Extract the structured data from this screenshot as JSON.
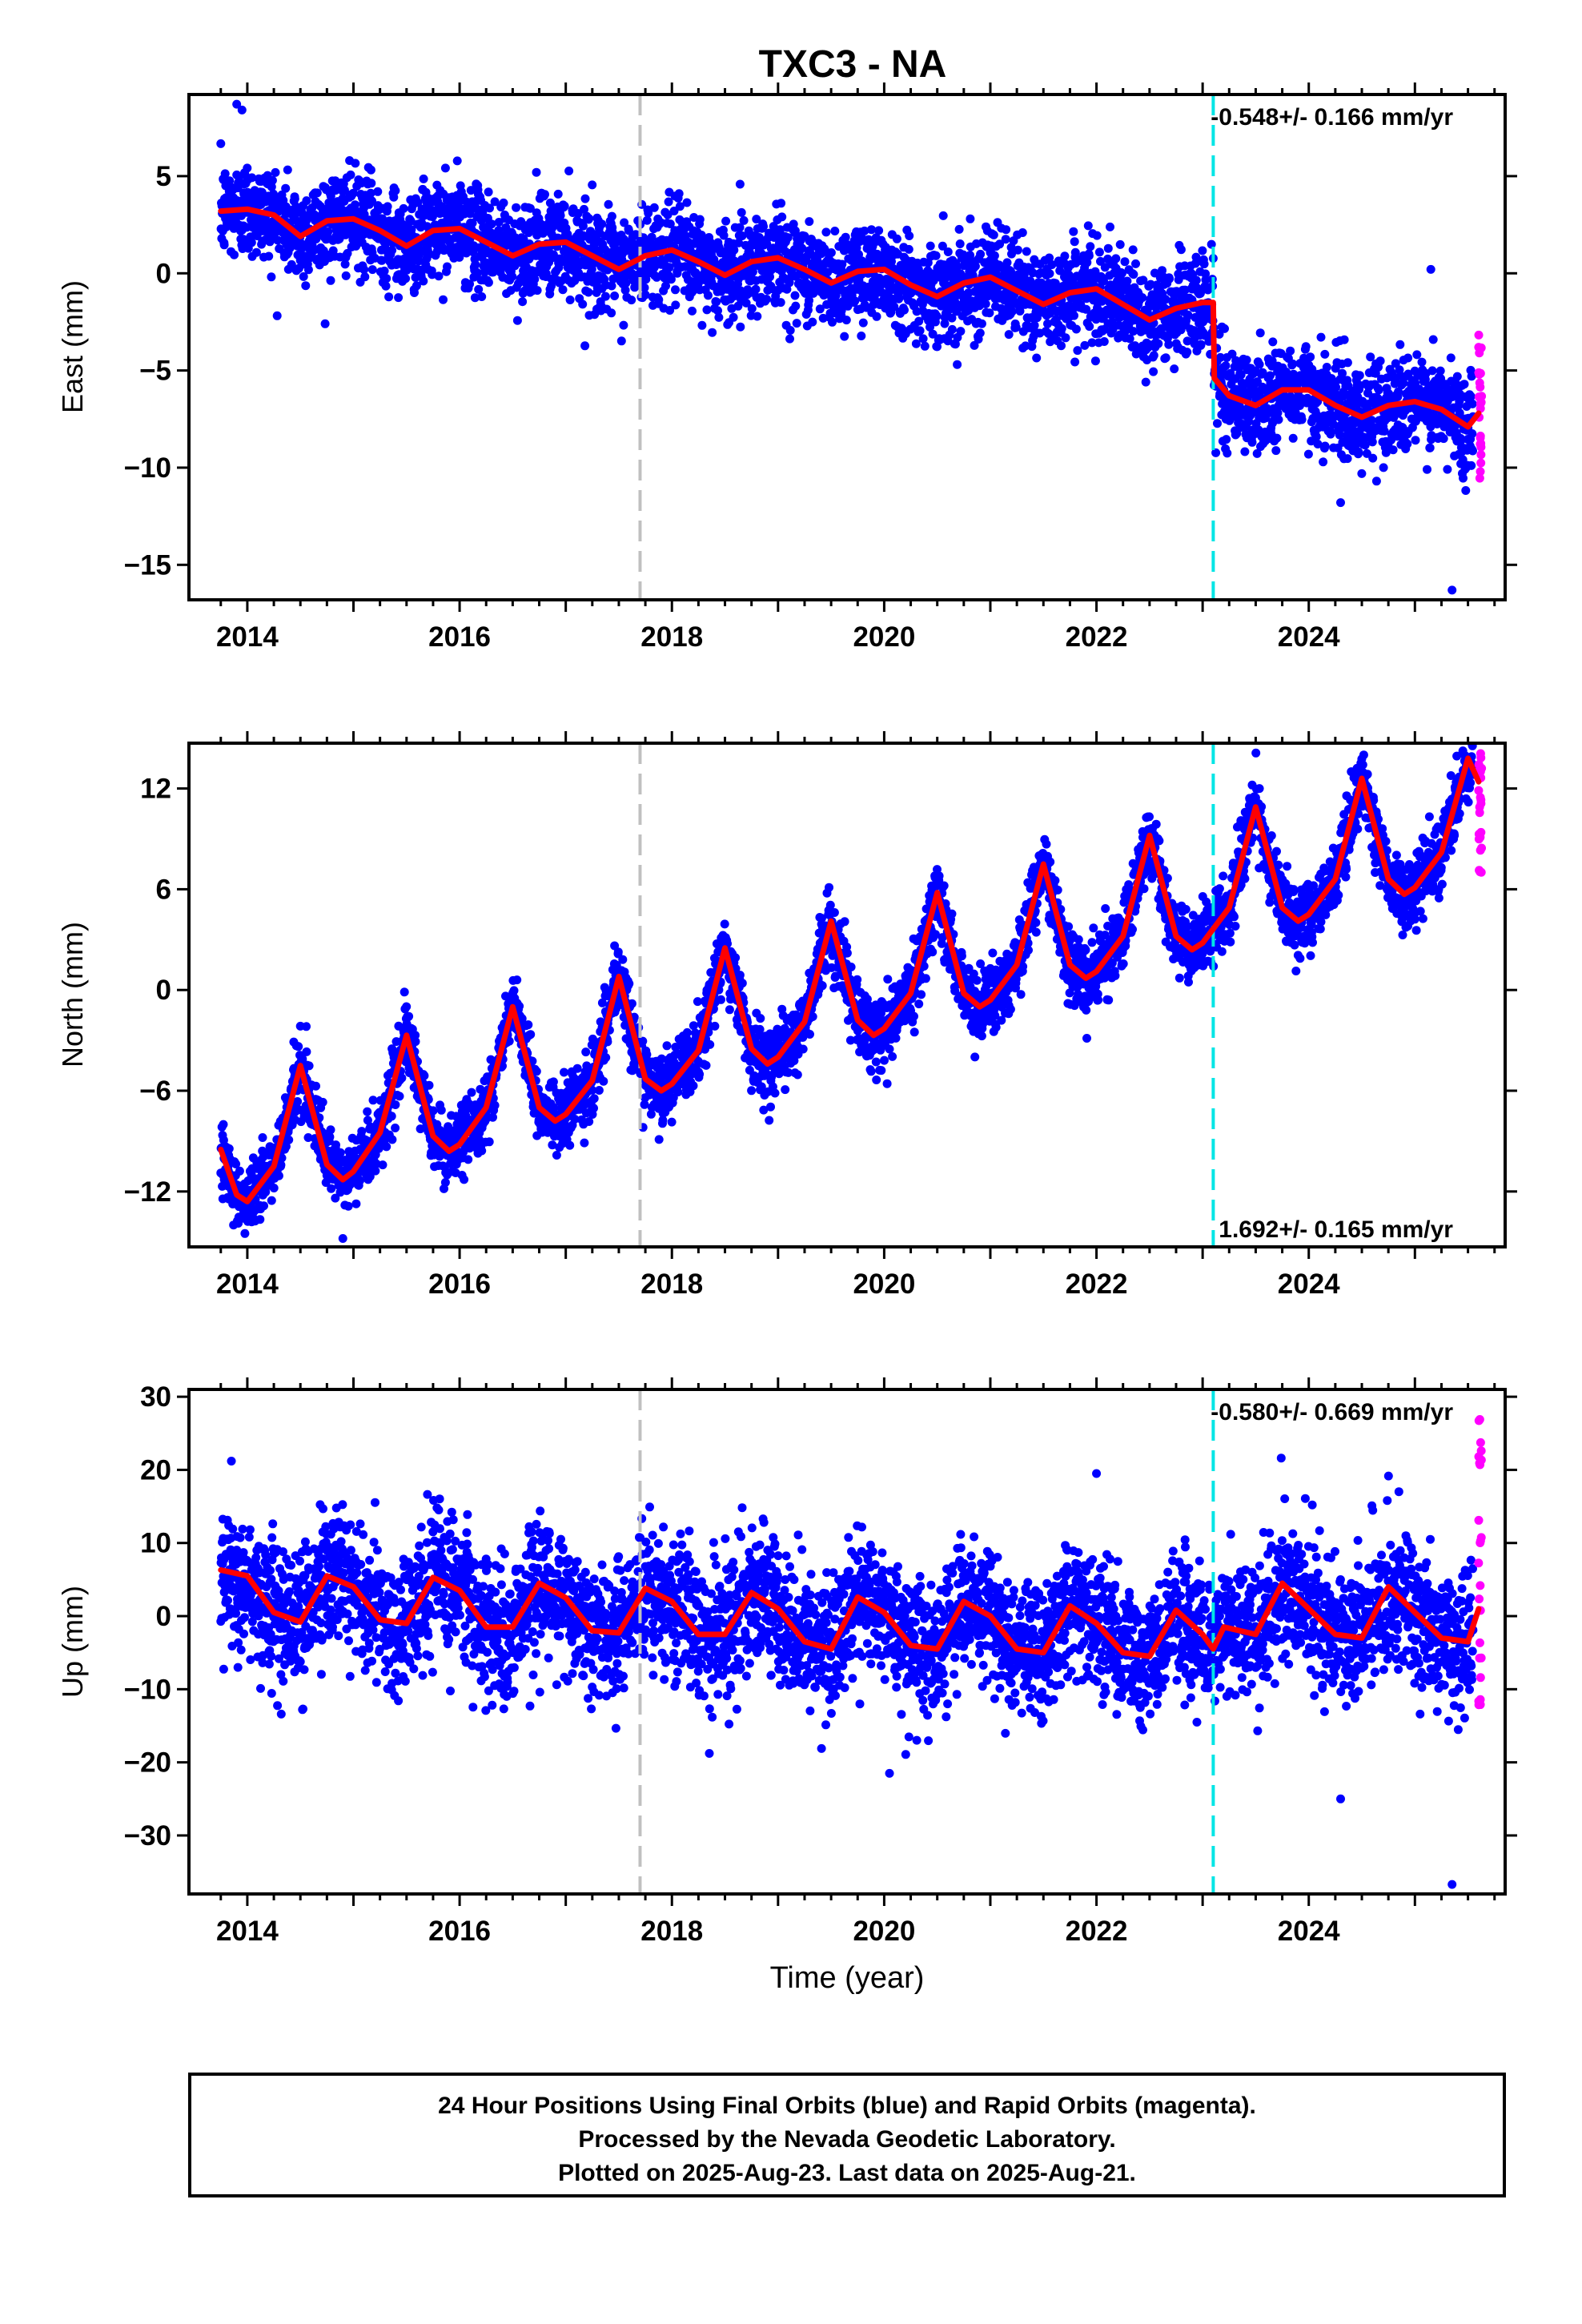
{
  "title": "TXC3 - NA",
  "xlabel": "Time (year)",
  "colors": {
    "final": "#0000ff",
    "rapid": "#ff00ff",
    "model": "#ff0000",
    "marker_gray": "#c0c0c0",
    "marker_cyan": "#00e5e5"
  },
  "x_ticks": [
    "2014",
    "2016",
    "2018",
    "2020",
    "2022",
    "2024"
  ],
  "footer": {
    "line1": "24 Hour Positions Using Final Orbits (blue) and Rapid Orbits (magenta).",
    "line2": "Processed by the Nevada Geodetic Laboratory.",
    "line3": "Plotted on 2025-Aug-23. Last data on 2025-Aug-21."
  },
  "chart_data": [
    {
      "type": "scatter",
      "ylabel": "East (mm)",
      "xlim": [
        2013.45,
        2025.85
      ],
      "ylim": [
        -16.8,
        9.2
      ],
      "yticks": [
        5,
        0,
        -5,
        -10,
        -15
      ],
      "ytick_labels": [
        "5",
        "0",
        "−5",
        "−10",
        "−15"
      ],
      "rate_label": "-0.548+/- 0.166 mm/yr",
      "rate_position": "top-right",
      "vertical_markers": [
        2017.7,
        2023.1
      ],
      "model_x": [
        2013.75,
        2014.0,
        2014.25,
        2014.5,
        2014.75,
        2015.0,
        2015.25,
        2015.5,
        2015.75,
        2016.0,
        2016.25,
        2016.5,
        2016.75,
        2017.0,
        2017.25,
        2017.5,
        2017.75,
        2018.0,
        2018.25,
        2018.5,
        2018.75,
        2019.0,
        2019.25,
        2019.5,
        2019.75,
        2020.0,
        2020.25,
        2020.5,
        2020.75,
        2021.0,
        2021.25,
        2021.5,
        2021.75,
        2022.0,
        2022.25,
        2022.5,
        2022.75,
        2023.0,
        2023.1,
        2023.11,
        2023.25,
        2023.5,
        2023.75,
        2024.0,
        2024.25,
        2024.5,
        2024.75,
        2025.0,
        2025.25,
        2025.5,
        2025.6
      ],
      "model_y": [
        3.2,
        3.3,
        3.0,
        1.9,
        2.7,
        2.8,
        2.2,
        1.4,
        2.2,
        2.3,
        1.6,
        0.9,
        1.5,
        1.6,
        0.9,
        0.2,
        0.9,
        1.2,
        0.6,
        -0.1,
        0.6,
        0.8,
        0.2,
        -0.5,
        0.1,
        0.2,
        -0.6,
        -1.2,
        -0.5,
        -0.2,
        -0.9,
        -1.6,
        -1.0,
        -0.8,
        -1.6,
        -2.4,
        -1.8,
        -1.5,
        -1.5,
        -5.4,
        -6.3,
        -6.8,
        -6.0,
        -6.0,
        -6.8,
        -7.4,
        -6.8,
        -6.6,
        -7.0,
        -7.9,
        -7.2
      ],
      "final_orbits": {
        "x_range": [
          2013.75,
          2025.55
        ],
        "trend_mm_per_yr": -0.548,
        "annual_amp_mm": 0.8,
        "offset_at_2023_1_mm": -4.0,
        "scatter_sigma_mm": 1.25,
        "outliers": [
          [
            2013.9,
            8.7
          ],
          [
            2013.95,
            8.4
          ],
          [
            2024.3,
            -11.8
          ],
          [
            2025.35,
            -16.3
          ],
          [
            2025.15,
            0.2
          ]
        ]
      },
      "rapid_orbits": {
        "x_range": [
          2025.55,
          2025.64
        ],
        "y_range": [
          -10.9,
          -2.2
        ]
      }
    },
    {
      "type": "scatter",
      "ylabel": "North (mm)",
      "xlim": [
        2013.45,
        2025.85
      ],
      "ylim": [
        -15.3,
        14.7
      ],
      "yticks": [
        12,
        6,
        0,
        -6,
        -12
      ],
      "ytick_labels": [
        "12",
        "6",
        "0",
        "−6",
        "−12"
      ],
      "rate_label": "1.692+/- 0.165 mm/yr",
      "rate_position": "bottom-right",
      "vertical_markers": [
        2017.7,
        2023.1
      ],
      "model_x": [
        2013.75,
        2013.9,
        2014.0,
        2014.25,
        2014.5,
        2014.75,
        2014.9,
        2015.0,
        2015.25,
        2015.5,
        2015.75,
        2015.9,
        2016.0,
        2016.25,
        2016.5,
        2016.75,
        2016.9,
        2017.0,
        2017.25,
        2017.5,
        2017.75,
        2017.9,
        2018.0,
        2018.25,
        2018.5,
        2018.75,
        2018.9,
        2019.0,
        2019.25,
        2019.5,
        2019.75,
        2019.9,
        2020.0,
        2020.25,
        2020.5,
        2020.75,
        2020.9,
        2021.0,
        2021.25,
        2021.5,
        2021.75,
        2021.9,
        2022.0,
        2022.25,
        2022.5,
        2022.75,
        2022.9,
        2023.0,
        2023.25,
        2023.5,
        2023.75,
        2023.9,
        2024.0,
        2024.25,
        2024.5,
        2024.75,
        2024.9,
        2025.0,
        2025.25,
        2025.5,
        2025.6
      ],
      "model_y": [
        -9.5,
        -12.2,
        -12.6,
        -10.5,
        -4.5,
        -10.4,
        -11.3,
        -10.8,
        -8.5,
        -2.7,
        -8.7,
        -9.6,
        -9.2,
        -7.0,
        -1.0,
        -7.0,
        -7.8,
        -7.4,
        -5.4,
        0.8,
        -5.3,
        -6.0,
        -5.6,
        -3.6,
        2.5,
        -3.5,
        -4.4,
        -4.0,
        -1.9,
        4.1,
        -1.8,
        -2.7,
        -2.3,
        -0.2,
        5.8,
        -0.2,
        -1.0,
        -0.6,
        1.5,
        7.5,
        1.5,
        0.7,
        1.1,
        3.2,
        9.2,
        3.2,
        2.4,
        2.8,
        4.9,
        10.9,
        4.9,
        4.1,
        4.5,
        6.6,
        12.6,
        6.6,
        5.7,
        6.1,
        8.2,
        13.8,
        12.4
      ],
      "final_orbits": {
        "x_range": [
          2013.75,
          2025.55
        ],
        "trend_mm_per_yr": 1.692,
        "annual_amp_mm": 3.6,
        "scatter_sigma_mm": 1.0,
        "outliers": [
          [
            2014.9,
            -14.8
          ],
          [
            2024.4,
            13.0
          ]
        ]
      },
      "rapid_orbits": {
        "x_range": [
          2025.55,
          2025.64
        ],
        "y_range": [
          7.0,
          14.2
        ]
      }
    },
    {
      "type": "scatter",
      "ylabel": "Up (mm)",
      "xlim": [
        2013.45,
        2025.85
      ],
      "ylim": [
        -38,
        31
      ],
      "yticks": [
        30,
        20,
        10,
        0,
        -10,
        -20,
        -30
      ],
      "ytick_labels": [
        "30",
        "20",
        "10",
        "0",
        "−10",
        "−20",
        "−30"
      ],
      "rate_label": "-0.580+/- 0.669 mm/yr",
      "rate_position": "top-right",
      "vertical_markers": [
        2017.7,
        2023.1
      ],
      "model_x": [
        2013.75,
        2014.0,
        2014.25,
        2014.5,
        2014.75,
        2015.0,
        2015.25,
        2015.5,
        2015.75,
        2016.0,
        2016.25,
        2016.5,
        2016.75,
        2017.0,
        2017.25,
        2017.5,
        2017.75,
        2018.0,
        2018.25,
        2018.5,
        2018.75,
        2019.0,
        2019.25,
        2019.5,
        2019.75,
        2020.0,
        2020.25,
        2020.5,
        2020.75,
        2021.0,
        2021.25,
        2021.5,
        2021.75,
        2022.0,
        2022.25,
        2022.5,
        2022.75,
        2023.0,
        2023.1,
        2023.2,
        2023.5,
        2023.75,
        2024.0,
        2024.25,
        2024.5,
        2024.75,
        2025.0,
        2025.25,
        2025.5,
        2025.6
      ],
      "model_y": [
        6.3,
        5.5,
        0.5,
        -0.8,
        5.5,
        4.0,
        -0.5,
        -1.0,
        5.3,
        3.5,
        -1.5,
        -1.5,
        4.5,
        2.5,
        -2.0,
        -2.3,
        3.8,
        2.0,
        -2.5,
        -2.5,
        3.2,
        1.0,
        -3.5,
        -4.5,
        2.6,
        0.5,
        -4.0,
        -4.5,
        2.0,
        0.0,
        -4.5,
        -5.0,
        1.4,
        -1.0,
        -5.0,
        -5.5,
        0.8,
        -2.5,
        -4.5,
        -1.5,
        -2.5,
        4.5,
        1.0,
        -2.5,
        -3.0,
        4.0,
        0.5,
        -3.0,
        -3.5,
        1.0
      ],
      "final_orbits": {
        "x_range": [
          2013.75,
          2025.55
        ],
        "trend_mm_per_yr": -0.58,
        "annual_amp_mm": 3.5,
        "scatter_sigma_mm": 4.6,
        "outliers": [
          [
            2013.85,
            21.2
          ],
          [
            2024.3,
            -25.0
          ],
          [
            2025.35,
            -36.7
          ],
          [
            2022.0,
            19.5
          ],
          [
            2020.05,
            -21.5
          ]
        ]
      },
      "rapid_orbits": {
        "x_range": [
          2025.55,
          2025.64
        ],
        "y_range": [
          -12.5,
          29.5
        ]
      }
    }
  ]
}
